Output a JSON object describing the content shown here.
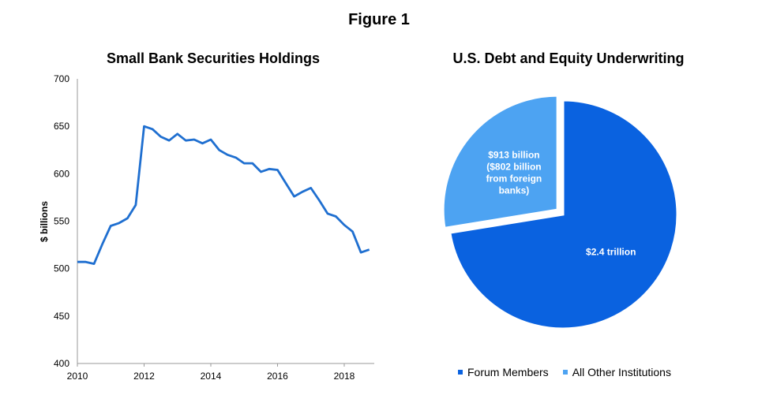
{
  "figure_title": "Figure 1",
  "colors": {
    "line": "#1F6FD0",
    "forum": "#0A62E0",
    "other": "#4DA3F2"
  },
  "chart_data": [
    {
      "type": "line",
      "title": "Small Bank Securities Holdings",
      "xlabel": "",
      "ylabel": "$ billions",
      "xlim": [
        2010,
        2018.9
      ],
      "ylim": [
        400,
        700
      ],
      "yticks": [
        400,
        450,
        500,
        550,
        600,
        650,
        700
      ],
      "xticks": [
        2010,
        2012,
        2014,
        2016,
        2018
      ],
      "grid": false,
      "series": [
        {
          "x": [
            2010.0,
            2010.25,
            2010.5,
            2010.75,
            2011.0,
            2011.25,
            2011.5,
            2011.75,
            2012.0,
            2012.25,
            2012.5,
            2012.75,
            2013.0,
            2013.25,
            2013.5,
            2013.75,
            2014.0,
            2014.25,
            2014.5,
            2014.75,
            2015.0,
            2015.25,
            2015.5,
            2015.75,
            2016.0,
            2016.25,
            2016.5,
            2016.75,
            2017.0,
            2017.25,
            2017.5,
            2017.75,
            2018.0,
            2018.25,
            2018.5,
            2018.75
          ],
          "values": [
            507,
            507,
            505,
            526,
            545,
            548,
            553,
            567,
            650,
            647,
            639,
            635,
            642,
            635,
            636,
            632,
            636,
            625,
            620,
            617,
            611,
            611,
            602,
            605,
            604,
            590,
            576,
            581,
            585,
            572,
            558,
            555,
            546,
            539,
            517,
            520
          ]
        }
      ]
    },
    {
      "type": "pie",
      "title": "U.S. Debt and Equity Underwriting",
      "slices": [
        {
          "name": "Forum Members",
          "value": 2.4,
          "label": "$2.4 trillion",
          "exploded": false
        },
        {
          "name": "All Other Institutions",
          "value": 0.913,
          "label_lines": [
            "$913 billion",
            "($802 billion",
            "from foreign",
            "banks)"
          ],
          "exploded": true
        }
      ],
      "legend": [
        "Forum Members",
        "All Other Institutions"
      ],
      "legend_position": "bottom"
    }
  ]
}
